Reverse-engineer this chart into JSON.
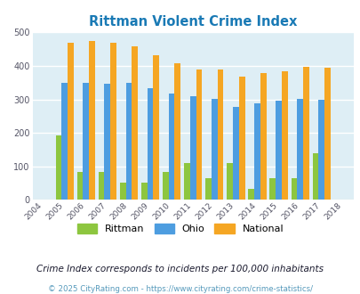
{
  "title": "Rittman Violent Crime Index",
  "years": [
    2004,
    2005,
    2006,
    2007,
    2008,
    2009,
    2010,
    2011,
    2012,
    2013,
    2014,
    2015,
    2016,
    2017,
    2018
  ],
  "rittman": [
    null,
    193,
    83,
    83,
    52,
    52,
    83,
    110,
    65,
    110,
    33,
    65,
    65,
    140,
    null
  ],
  "ohio": [
    null,
    350,
    350,
    347,
    350,
    333,
    317,
    310,
    302,
    278,
    288,
    295,
    301,
    298,
    null
  ],
  "national": [
    null,
    470,
    474,
    468,
    457,
    432,
    407,
    389,
    388,
    368,
    378,
    384,
    397,
    394,
    null
  ],
  "rittman_color": "#8dc63f",
  "ohio_color": "#4d9de0",
  "national_color": "#f5a623",
  "bg_color": "#deeef5",
  "ylim": [
    0,
    500
  ],
  "yticks": [
    0,
    100,
    200,
    300,
    400,
    500
  ],
  "footnote1": "Crime Index corresponds to incidents per 100,000 inhabitants",
  "footnote2": "© 2025 CityRating.com - https://www.cityrating.com/crime-statistics/",
  "title_color": "#1a7ab5",
  "footnote1_color": "#1a1a2e",
  "footnote2_color": "#5599bb"
}
